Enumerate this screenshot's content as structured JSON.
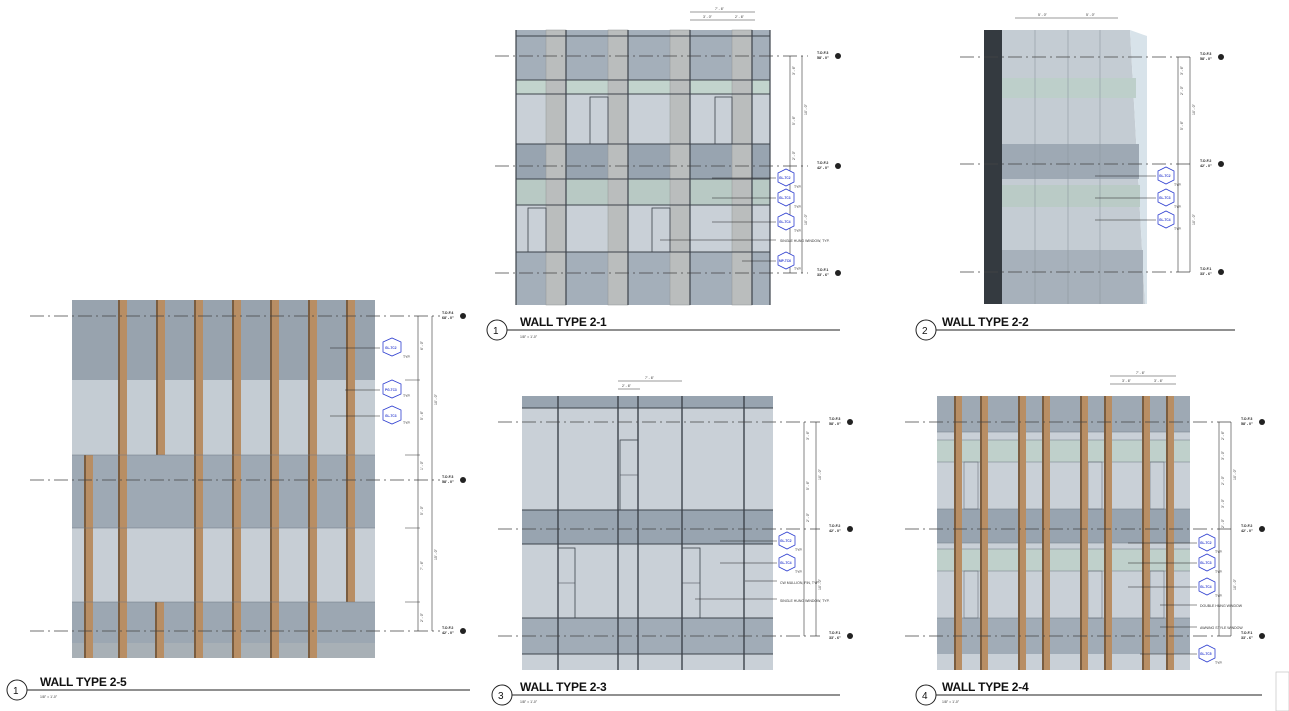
{
  "views": [
    {
      "id": "wt25",
      "number": "1",
      "title": "WALL TYPE 2-5",
      "scale": "1/8\" = 1'-0\"",
      "levels": [
        {
          "name": "T.O.F.4",
          "elev": "68' - 0\""
        },
        {
          "name": "T.O.F.3",
          "elev": "58' - 0\""
        },
        {
          "name": "T.O.F.2",
          "elev": "42' - 0\""
        }
      ],
      "dims": [
        "3' - 6\"",
        "6' - 0\"",
        "5' - 6\"",
        "1' - 0\"",
        "5' - 0\"",
        "7' - 6\"",
        "2' - 0\"",
        "10' - 0\"",
        "15' - 0\""
      ],
      "tags": [
        "GL-TC2",
        "PG-TC3",
        "GL-TC3"
      ],
      "notes": [
        "TYP.",
        "TYP.",
        "TYP."
      ]
    },
    {
      "id": "wt21",
      "number": "1",
      "title": "WALL TYPE 2-1",
      "scale": "1/8\" = 1'-0\"",
      "levels": [
        {
          "name": "T.O.F.3",
          "elev": "58' - 0\""
        },
        {
          "name": "T.O.F.2",
          "elev": "42' - 0\""
        },
        {
          "name": "T.O.F.1",
          "elev": "33' - 6\""
        }
      ],
      "dims": [
        "7' - 6\"",
        "3' - 0\"",
        "2' - 6\"",
        "3' - 6\"",
        "3' - 6\"",
        "5' - 6\"",
        "2' - 0\"",
        "10' - 0\"",
        "10' - 0\""
      ],
      "tags": [
        "GL-TC2",
        "GL-TC3",
        "GL-TC4",
        "MP-TC6"
      ],
      "notes": [
        "TYP.",
        "TYP.",
        "TYP.",
        "SINGLE HUNG WINDOW, TYP.",
        "TYP."
      ]
    },
    {
      "id": "wt22",
      "number": "2",
      "title": "WALL TYPE 2-2",
      "scale": "",
      "levels": [
        {
          "name": "T.O.F.3",
          "elev": "58' - 0\""
        },
        {
          "name": "T.O.F.2",
          "elev": "42' - 0\""
        },
        {
          "name": "T.O.F.1",
          "elev": "33' - 6\""
        }
      ],
      "dims": [
        "5' - 0\"",
        "5' - 0\"",
        "3' - 6\"",
        "2' - 0\"",
        "5' - 6\"",
        "10' - 0\"",
        "10' - 0\""
      ],
      "tags": [
        "GL-TC2",
        "GL-TC3",
        "GL-TC4"
      ],
      "notes": [
        "TYP.",
        "TYP.",
        "TYP."
      ]
    },
    {
      "id": "wt23",
      "number": "3",
      "title": "WALL TYPE 2-3",
      "scale": "1/8\" = 1'-0\"",
      "levels": [
        {
          "name": "T.O.F.3",
          "elev": "58' - 0\""
        },
        {
          "name": "T.O.F.2",
          "elev": "42' - 0\""
        },
        {
          "name": "T.O.F.1",
          "elev": "33' - 6\""
        }
      ],
      "dims": [
        "7' - 6\"",
        "2' - 6\"",
        "3' - 6\"",
        "5' - 6\"",
        "2' - 0\"",
        "10' - 0\"",
        "10' - 0\""
      ],
      "tags": [
        "GL-TC2",
        "GL-TC4"
      ],
      "notes": [
        "TYP.",
        "TYP.",
        "CW MULLION, FIN, TYP.",
        "SINGLE HUNG WINDOW, TYP."
      ]
    },
    {
      "id": "wt24",
      "number": "4",
      "title": "WALL TYPE 2-4",
      "scale": "1/8\" = 1'-0\"",
      "levels": [
        {
          "name": "T.O.F.3",
          "elev": "58' - 0\""
        },
        {
          "name": "T.O.F.2",
          "elev": "42' - 0\""
        },
        {
          "name": "T.O.F.1",
          "elev": "33' - 6\""
        }
      ],
      "dims": [
        "7' - 6\"",
        "3' - 6\"",
        "3' - 6\"",
        "2' - 6\"",
        "3' - 0\"",
        "2' - 0\"",
        "3' - 0\"",
        "2' - 0\"",
        "10' - 0\"",
        "10' - 0\""
      ],
      "tags": [
        "GL-TC2",
        "GL-TC3",
        "GL-TC4",
        "GL-TC5"
      ],
      "notes": [
        "TYP.",
        "TYP.",
        "TYP.",
        "DOUBLE HUNG WINDOW",
        "AWNING STYLE WINDOW",
        "TYP."
      ]
    }
  ],
  "colors": {
    "panel_dark": "#8e9aa6",
    "panel_mid": "#aeb8c2",
    "panel_light": "#c9d0d7",
    "spandrel_green": "#b9c9c6",
    "wood_fin": "#b88e64",
    "wood_edge": "#7a5d40",
    "mullion": "#3d434b",
    "tag_blue": "#2f3fd0",
    "pilaster": "#babdbd"
  }
}
